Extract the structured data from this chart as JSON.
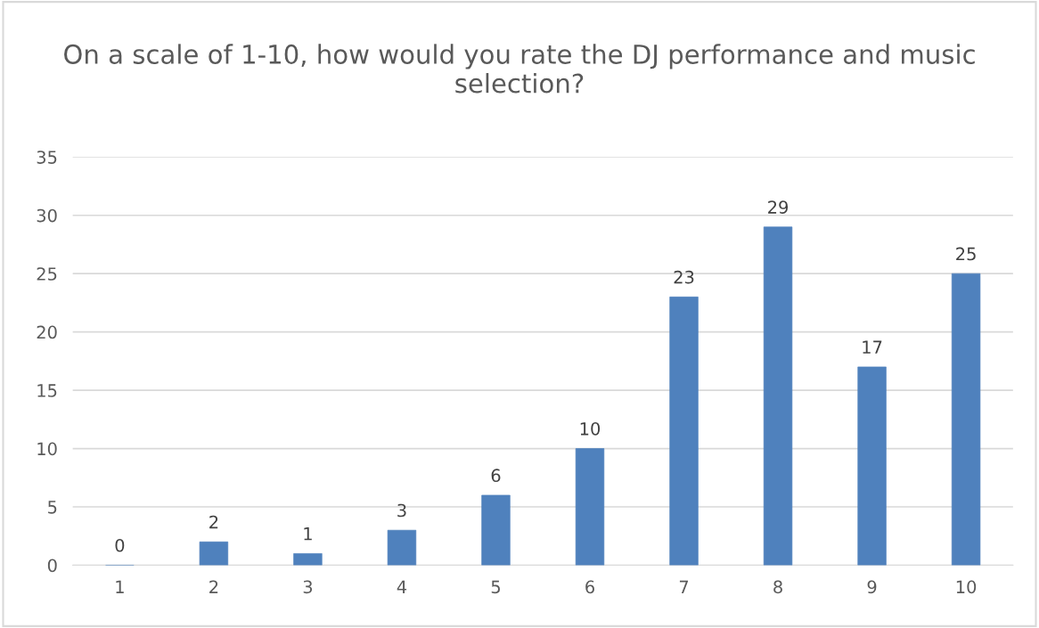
{
  "chart_data": {
    "type": "bar",
    "title": "On a scale of 1-10, how would you rate the DJ performance and music selection?",
    "categories": [
      "1",
      "2",
      "3",
      "4",
      "5",
      "6",
      "7",
      "8",
      "9",
      "10"
    ],
    "values": [
      0,
      2,
      1,
      3,
      6,
      10,
      23,
      29,
      17,
      25
    ],
    "color": "#4f81bd",
    "ylim": [
      0,
      35
    ],
    "yticks": [
      0,
      5,
      10,
      15,
      20,
      25,
      30,
      35
    ],
    "grid": "y",
    "data_labels": true,
    "legend": false
  }
}
